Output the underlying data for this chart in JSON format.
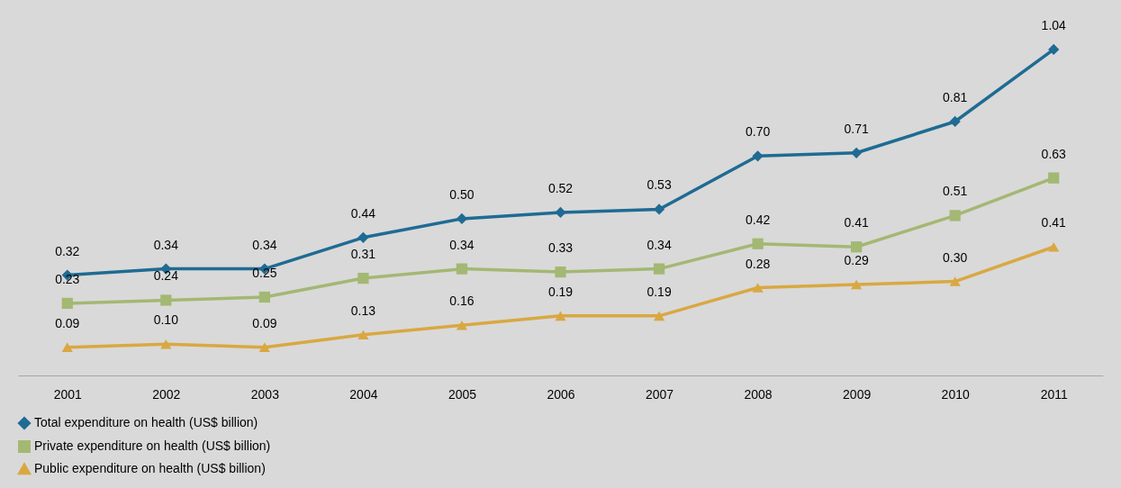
{
  "chart_data": {
    "type": "line",
    "categories": [
      "2001",
      "2002",
      "2003",
      "2004",
      "2005",
      "2006",
      "2007",
      "2008",
      "2009",
      "2010",
      "2011"
    ],
    "series": [
      {
        "name": "Total expenditure on health (US$ billion)",
        "color": "#1f6b93",
        "marker": "diamond",
        "values": [
          0.32,
          0.34,
          0.34,
          0.44,
          0.5,
          0.52,
          0.53,
          0.7,
          0.71,
          0.81,
          1.04
        ],
        "value_labels": [
          "0.32",
          "0.34",
          "0.34",
          "0.44",
          "0.50",
          "0.52",
          "0.53",
          "0.70",
          "0.71",
          "0.81",
          "1.04"
        ]
      },
      {
        "name": "Private expenditure on health (US$ billion)",
        "color": "#a3b873",
        "marker": "square",
        "values": [
          0.23,
          0.24,
          0.25,
          0.31,
          0.34,
          0.33,
          0.34,
          0.42,
          0.41,
          0.51,
          0.63
        ],
        "value_labels": [
          "0.23",
          "0.24",
          "0.25",
          "0.31",
          "0.34",
          "0.33",
          "0.34",
          "0.42",
          "0.41",
          "0.51",
          "0.63"
        ]
      },
      {
        "name": "Public expenditure on health (US$ billion)",
        "color": "#d9a842",
        "marker": "triangle",
        "values": [
          0.09,
          0.1,
          0.09,
          0.13,
          0.16,
          0.19,
          0.19,
          0.28,
          0.29,
          0.3,
          0.41
        ],
        "value_labels": [
          "0.09",
          "0.10",
          "0.09",
          "0.13",
          "0.16",
          "0.19",
          "0.19",
          "0.28",
          "0.29",
          "0.30",
          "0.41"
        ]
      }
    ],
    "legend": "bottom",
    "tick_labels": "x",
    "line_style": "solid"
  }
}
